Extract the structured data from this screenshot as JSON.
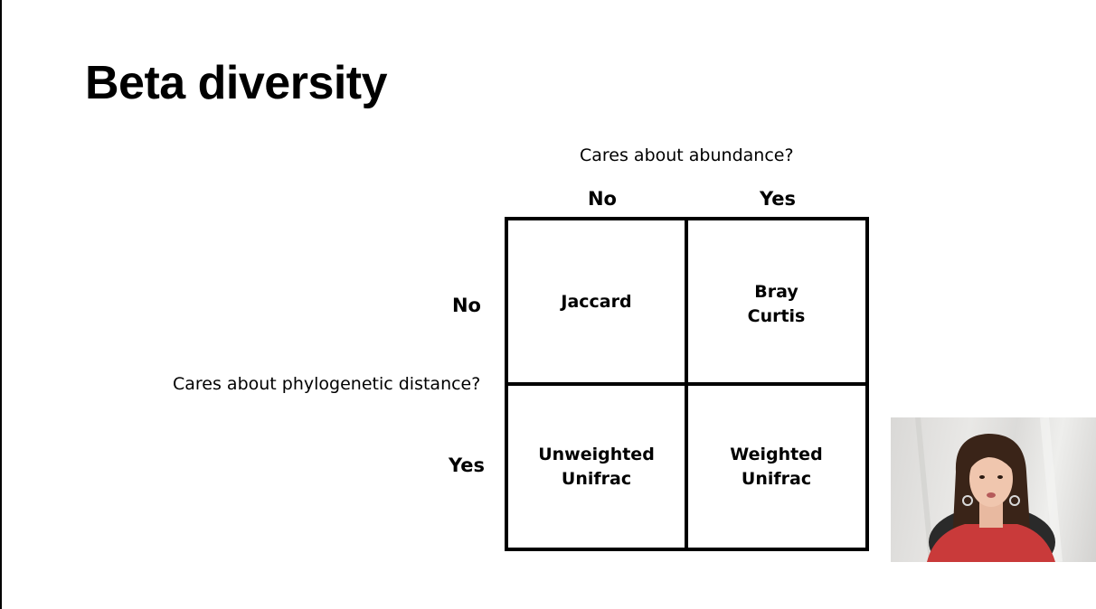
{
  "slide": {
    "title": "Beta diversity"
  },
  "matrix": {
    "column_axis_label": "Cares about abundance?",
    "row_axis_label": "Cares about phylogenetic distance?",
    "column_headers": [
      "No",
      "Yes"
    ],
    "row_headers": [
      "No",
      "Yes"
    ],
    "cells": [
      [
        "Jaccard",
        "Bray\nCurtis"
      ],
      [
        "Unweighted\nUnifrac",
        "Weighted\nUnifrac"
      ]
    ]
  },
  "webcam": {
    "icon": "presenter-video"
  }
}
